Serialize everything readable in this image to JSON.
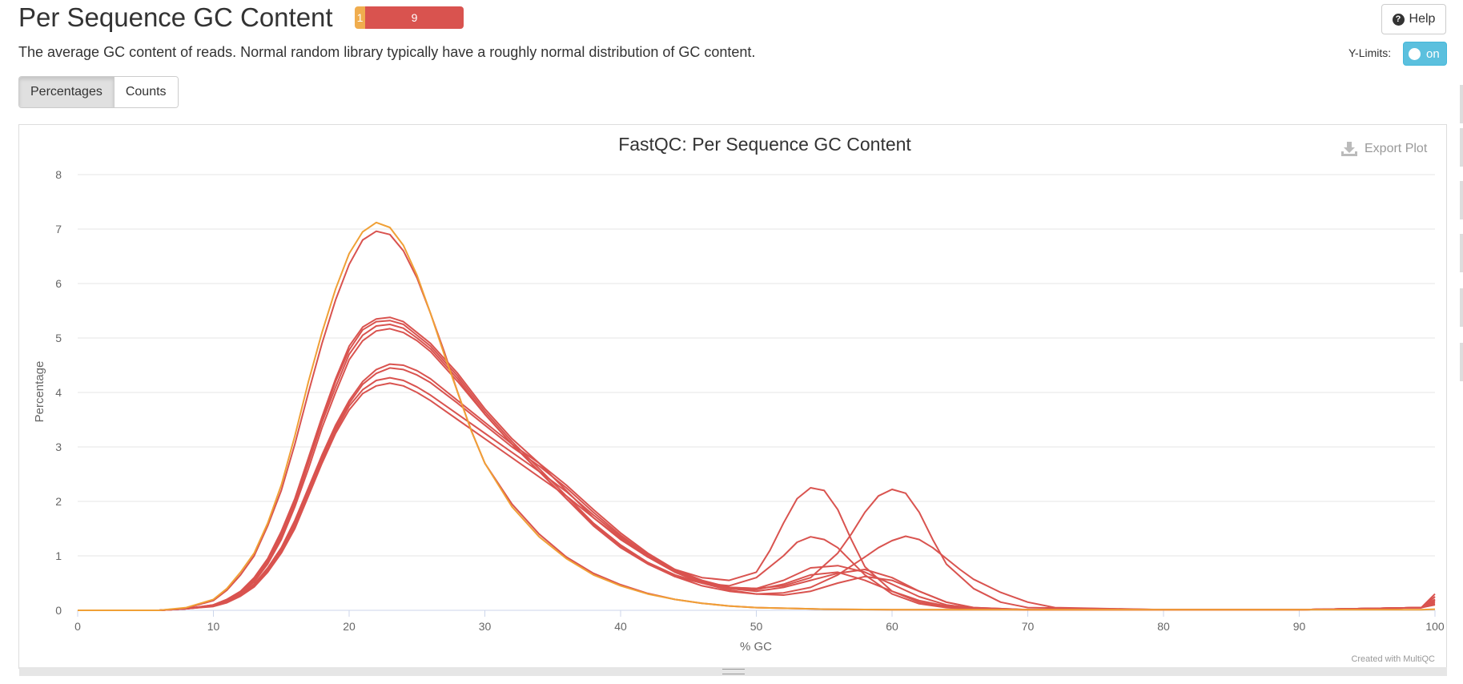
{
  "header": {
    "title": "Per Sequence GC Content",
    "status_warn_count": "1",
    "status_fail_count": "9",
    "help_label": "Help",
    "description": "The average GC content of reads. Normal random library typically have a roughly normal distribution of GC content.",
    "ylimits_label": "Y-Limits:",
    "ylimits_state": "on"
  },
  "toggles": {
    "percentages_label": "Percentages",
    "counts_label": "Counts",
    "active": "Percentages"
  },
  "plot": {
    "export_label": "Export Plot",
    "credit": "Created with MultiQC"
  },
  "colors": {
    "warn": "#f0ad4e",
    "fail": "#d9534f",
    "info": "#5bc0de",
    "warn_line": "#f0a036",
    "fail_line": "#d9534f"
  },
  "chart_data": {
    "type": "line",
    "title": "FastQC: Per Sequence GC Content",
    "xlabel": "% GC",
    "ylabel": "Percentage",
    "xlim": [
      0,
      100
    ],
    "ylim": [
      0,
      8
    ],
    "xticks": [
      0,
      10,
      20,
      30,
      40,
      50,
      60,
      70,
      80,
      90,
      100
    ],
    "yticks": [
      0,
      1,
      2,
      3,
      4,
      5,
      6,
      7,
      8
    ],
    "grid": true,
    "legend": "none",
    "series": [
      {
        "status": "warn",
        "x": [
          0,
          6,
          8,
          10,
          11,
          12,
          13,
          14,
          15,
          16,
          17,
          18,
          19,
          20,
          21,
          22,
          23,
          24,
          25,
          26,
          27,
          28,
          29,
          30,
          32,
          34,
          36,
          38,
          40,
          42,
          44,
          46,
          48,
          50,
          55,
          60,
          70,
          80,
          90,
          99,
          100
        ],
        "y": [
          0,
          0,
          0.05,
          0.2,
          0.4,
          0.7,
          1.05,
          1.6,
          2.3,
          3.2,
          4.2,
          5.1,
          5.9,
          6.55,
          6.95,
          7.12,
          7.03,
          6.7,
          6.15,
          5.45,
          4.7,
          4.0,
          3.3,
          2.7,
          1.9,
          1.35,
          0.95,
          0.65,
          0.45,
          0.3,
          0.2,
          0.13,
          0.08,
          0.05,
          0.02,
          0.01,
          0.01,
          0.01,
          0.01,
          0.01,
          0.02
        ]
      },
      {
        "status": "fail",
        "x": [
          0,
          6,
          8,
          10,
          11,
          12,
          13,
          14,
          15,
          16,
          17,
          18,
          19,
          20,
          21,
          22,
          23,
          24,
          25,
          26,
          27,
          28,
          29,
          30,
          32,
          34,
          36,
          38,
          40,
          42,
          44,
          46,
          48,
          50,
          55,
          60,
          70,
          80,
          90,
          99,
          100
        ],
        "y": [
          0,
          0,
          0.04,
          0.18,
          0.37,
          0.65,
          1.0,
          1.55,
          2.2,
          3.05,
          4.0,
          4.9,
          5.7,
          6.35,
          6.8,
          6.96,
          6.9,
          6.6,
          6.1,
          5.45,
          4.75,
          4.0,
          3.3,
          2.7,
          1.95,
          1.4,
          0.98,
          0.68,
          0.47,
          0.31,
          0.2,
          0.13,
          0.08,
          0.05,
          0.02,
          0.01,
          0.01,
          0.01,
          0.01,
          0.05,
          0.2
        ]
      },
      {
        "status": "fail",
        "x": [
          0,
          6,
          8,
          10,
          11,
          12,
          13,
          14,
          15,
          16,
          17,
          18,
          19,
          20,
          21,
          22,
          23,
          24,
          25,
          26,
          28,
          30,
          32,
          34,
          36,
          38,
          40,
          42,
          44,
          46,
          48,
          50,
          51,
          52,
          53,
          54,
          55,
          56,
          57,
          58,
          60,
          62,
          64,
          66,
          70,
          80,
          90,
          99,
          100
        ],
        "y": [
          0,
          0,
          0.03,
          0.1,
          0.2,
          0.35,
          0.6,
          0.95,
          1.45,
          2.05,
          2.8,
          3.55,
          4.25,
          4.85,
          5.2,
          5.35,
          5.38,
          5.3,
          5.1,
          4.9,
          4.35,
          3.7,
          3.15,
          2.7,
          2.2,
          1.7,
          1.3,
          0.98,
          0.75,
          0.6,
          0.55,
          0.7,
          1.1,
          1.6,
          2.05,
          2.25,
          2.2,
          1.85,
          1.3,
          0.8,
          0.35,
          0.15,
          0.06,
          0.03,
          0.01,
          0.01,
          0.01,
          0.05,
          0.25
        ]
      },
      {
        "status": "fail",
        "x": [
          0,
          6,
          8,
          10,
          11,
          12,
          13,
          14,
          15,
          16,
          17,
          18,
          19,
          20,
          21,
          22,
          23,
          24,
          25,
          26,
          28,
          30,
          32,
          34,
          36,
          38,
          40,
          42,
          44,
          46,
          48,
          50,
          52,
          54,
          56,
          57,
          58,
          59,
          60,
          61,
          62,
          63,
          64,
          66,
          68,
          70,
          80,
          90,
          99,
          100
        ],
        "y": [
          0,
          0,
          0.03,
          0.1,
          0.2,
          0.34,
          0.58,
          0.92,
          1.4,
          2.0,
          2.75,
          3.5,
          4.2,
          4.78,
          5.15,
          5.3,
          5.32,
          5.25,
          5.05,
          4.85,
          4.3,
          3.65,
          3.1,
          2.6,
          2.1,
          1.6,
          1.2,
          0.88,
          0.65,
          0.5,
          0.42,
          0.4,
          0.45,
          0.6,
          1.05,
          1.4,
          1.8,
          2.1,
          2.22,
          2.15,
          1.8,
          1.3,
          0.85,
          0.4,
          0.15,
          0.05,
          0.01,
          0.01,
          0.05,
          0.3
        ]
      },
      {
        "status": "fail",
        "x": [
          0,
          6,
          8,
          10,
          11,
          12,
          13,
          14,
          15,
          16,
          17,
          18,
          19,
          20,
          21,
          22,
          23,
          24,
          25,
          26,
          28,
          30,
          32,
          34,
          36,
          38,
          40,
          42,
          44,
          46,
          48,
          50,
          52,
          53,
          54,
          55,
          56,
          57,
          58,
          60,
          62,
          64,
          66,
          70,
          80,
          90,
          99,
          100
        ],
        "y": [
          0,
          0,
          0.03,
          0.09,
          0.18,
          0.32,
          0.55,
          0.88,
          1.35,
          1.95,
          2.7,
          3.45,
          4.1,
          4.7,
          5.05,
          5.22,
          5.25,
          5.18,
          5.0,
          4.8,
          4.25,
          3.6,
          3.05,
          2.55,
          2.05,
          1.55,
          1.15,
          0.85,
          0.62,
          0.5,
          0.45,
          0.6,
          1.0,
          1.25,
          1.35,
          1.3,
          1.15,
          0.9,
          0.65,
          0.3,
          0.12,
          0.05,
          0.02,
          0.01,
          0.01,
          0.01,
          0.05,
          0.2
        ]
      },
      {
        "status": "fail",
        "x": [
          0,
          6,
          8,
          10,
          11,
          12,
          13,
          14,
          15,
          16,
          17,
          18,
          19,
          20,
          21,
          22,
          23,
          24,
          25,
          26,
          28,
          30,
          32,
          34,
          36,
          38,
          40,
          42,
          44,
          46,
          48,
          50,
          52,
          54,
          56,
          58,
          59,
          60,
          61,
          62,
          63,
          64,
          65,
          66,
          68,
          70,
          72,
          80,
          90,
          99,
          100
        ],
        "y": [
          0,
          0,
          0.03,
          0.09,
          0.17,
          0.3,
          0.52,
          0.85,
          1.3,
          1.9,
          2.6,
          3.35,
          4.0,
          4.6,
          4.95,
          5.13,
          5.17,
          5.1,
          4.95,
          4.75,
          4.2,
          3.6,
          3.05,
          2.55,
          2.05,
          1.58,
          1.18,
          0.86,
          0.62,
          0.45,
          0.35,
          0.3,
          0.32,
          0.42,
          0.65,
          0.98,
          1.15,
          1.28,
          1.36,
          1.3,
          1.15,
          0.95,
          0.75,
          0.57,
          0.33,
          0.15,
          0.05,
          0.01,
          0.01,
          0.05,
          0.25
        ]
      },
      {
        "status": "fail",
        "x": [
          0,
          6,
          8,
          10,
          11,
          12,
          13,
          14,
          15,
          16,
          17,
          18,
          19,
          20,
          21,
          22,
          23,
          24,
          25,
          26,
          28,
          30,
          32,
          34,
          36,
          38,
          40,
          42,
          44,
          46,
          48,
          50,
          52,
          54,
          56,
          58,
          60,
          62,
          64,
          66,
          70,
          80,
          90,
          99,
          100
        ],
        "y": [
          0,
          0,
          0.03,
          0.08,
          0.16,
          0.28,
          0.48,
          0.78,
          1.15,
          1.65,
          2.25,
          2.85,
          3.4,
          3.85,
          4.2,
          4.42,
          4.52,
          4.5,
          4.4,
          4.25,
          3.85,
          3.45,
          3.05,
          2.7,
          2.3,
          1.85,
          1.42,
          1.05,
          0.75,
          0.55,
          0.42,
          0.4,
          0.55,
          0.78,
          0.82,
          0.7,
          0.48,
          0.25,
          0.1,
          0.04,
          0.01,
          0.01,
          0.01,
          0.05,
          0.18
        ]
      },
      {
        "status": "fail",
        "x": [
          0,
          6,
          8,
          10,
          11,
          12,
          13,
          14,
          15,
          16,
          17,
          18,
          19,
          20,
          21,
          22,
          23,
          24,
          25,
          26,
          28,
          30,
          32,
          34,
          36,
          38,
          40,
          42,
          44,
          46,
          48,
          50,
          52,
          54,
          56,
          58,
          60,
          62,
          64,
          66,
          70,
          80,
          90,
          99,
          100
        ],
        "y": [
          0,
          0,
          0.03,
          0.08,
          0.16,
          0.28,
          0.47,
          0.76,
          1.12,
          1.6,
          2.2,
          2.8,
          3.35,
          3.8,
          4.15,
          4.35,
          4.45,
          4.42,
          4.32,
          4.18,
          3.8,
          3.4,
          3.0,
          2.65,
          2.25,
          1.8,
          1.38,
          1.02,
          0.73,
          0.53,
          0.4,
          0.35,
          0.42,
          0.55,
          0.68,
          0.75,
          0.6,
          0.35,
          0.15,
          0.05,
          0.01,
          0.01,
          0.01,
          0.05,
          0.15
        ]
      },
      {
        "status": "fail",
        "x": [
          0,
          6,
          8,
          10,
          11,
          12,
          13,
          14,
          15,
          16,
          17,
          18,
          19,
          20,
          21,
          22,
          23,
          24,
          25,
          26,
          28,
          30,
          32,
          34,
          36,
          38,
          40,
          42,
          44,
          46,
          48,
          50,
          52,
          54,
          56,
          58,
          60,
          62,
          64,
          66,
          70,
          80,
          90,
          99,
          100
        ],
        "y": [
          0,
          0,
          0.03,
          0.08,
          0.15,
          0.27,
          0.45,
          0.73,
          1.08,
          1.55,
          2.15,
          2.75,
          3.3,
          3.75,
          4.05,
          4.22,
          4.27,
          4.22,
          4.1,
          3.95,
          3.6,
          3.25,
          2.9,
          2.55,
          2.18,
          1.75,
          1.35,
          1.0,
          0.72,
          0.52,
          0.4,
          0.38,
          0.48,
          0.65,
          0.7,
          0.55,
          0.35,
          0.18,
          0.08,
          0.03,
          0.01,
          0.01,
          0.01,
          0.05,
          0.12
        ]
      },
      {
        "status": "fail",
        "x": [
          0,
          6,
          8,
          10,
          11,
          12,
          13,
          14,
          15,
          16,
          17,
          18,
          19,
          20,
          21,
          22,
          23,
          24,
          25,
          26,
          28,
          30,
          32,
          34,
          36,
          38,
          40,
          42,
          44,
          46,
          48,
          50,
          52,
          54,
          56,
          58,
          60,
          62,
          64,
          66,
          70,
          80,
          90,
          99,
          100
        ],
        "y": [
          0,
          0,
          0.03,
          0.07,
          0.14,
          0.26,
          0.43,
          0.7,
          1.05,
          1.5,
          2.1,
          2.7,
          3.25,
          3.68,
          3.98,
          4.12,
          4.17,
          4.12,
          4.0,
          3.85,
          3.5,
          3.15,
          2.8,
          2.45,
          2.1,
          1.7,
          1.32,
          0.98,
          0.7,
          0.5,
          0.37,
          0.3,
          0.28,
          0.35,
          0.5,
          0.62,
          0.55,
          0.35,
          0.15,
          0.05,
          0.01,
          0.01,
          0.01,
          0.05,
          0.1
        ]
      }
    ]
  }
}
